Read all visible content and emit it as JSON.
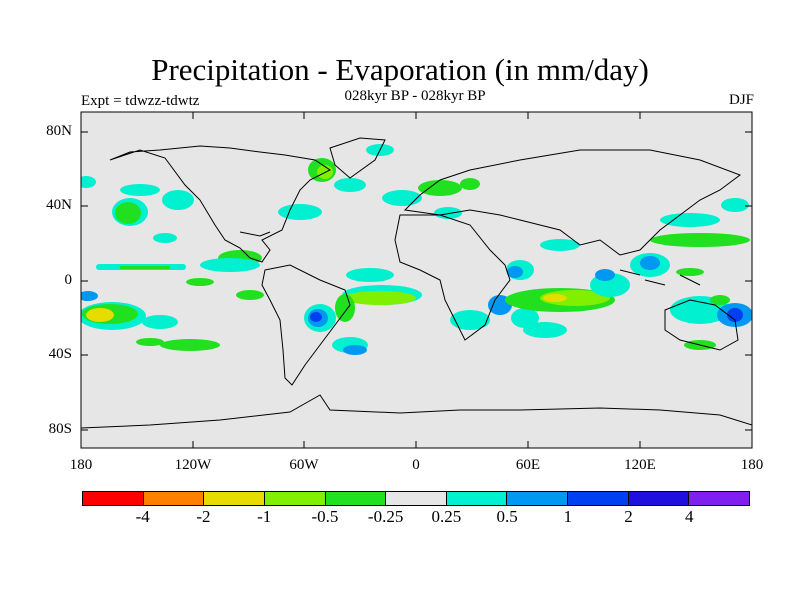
{
  "title": "Precipitation - Evaporation (in mm/day)",
  "subtitle": "028kyr BP - 028kyr BP",
  "left_label": "Expt = tdwzz-tdwtz",
  "right_label": "DJF",
  "lat_labels": [
    "80N",
    "40N",
    "0",
    "40S",
    "80S"
  ],
  "lon_labels": [
    "180",
    "120W",
    "60W",
    "0",
    "60E",
    "120E",
    "180"
  ],
  "colors": {
    "background_land_sea": "#e6e6e6",
    "coast": "#000000"
  },
  "colorbar": {
    "colors": [
      "#ff0000",
      "#ff8000",
      "#e6dc00",
      "#80f000",
      "#20e020",
      "#e6e6e6",
      "#00f0d0",
      "#0098f0",
      "#0040f0",
      "#2010e0",
      "#8020f0"
    ],
    "labels": [
      "-4",
      "-2",
      "-1",
      "-0.5",
      "-0.25",
      "0.25",
      "0.5",
      "1",
      "2",
      "4"
    ]
  }
}
